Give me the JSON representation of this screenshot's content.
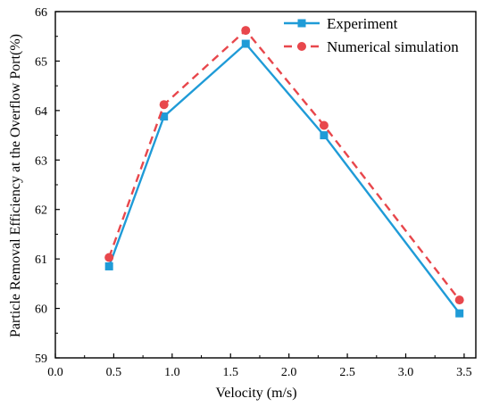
{
  "chart_data": {
    "type": "line",
    "xlabel": "Velocity (m/s)",
    "ylabel": "Particle Removal Efficiency at the Overflow Port(%)",
    "xlim": [
      0.0,
      3.6
    ],
    "ylim": [
      59,
      66
    ],
    "xticks": [
      "0.0",
      "0.5",
      "1.0",
      "1.5",
      "2.0",
      "2.5",
      "3.0",
      "3.5"
    ],
    "yticks": [
      "59",
      "60",
      "61",
      "62",
      "63",
      "64",
      "65",
      "66"
    ],
    "grid": false,
    "legend_position": "top-right",
    "series": [
      {
        "name": "Experiment",
        "color": "#1f9bd7",
        "line_style": "solid",
        "marker": "square",
        "x": [
          0.46,
          0.93,
          1.63,
          2.3,
          3.46
        ],
        "y": [
          60.85,
          63.88,
          65.35,
          63.5,
          59.9
        ]
      },
      {
        "name": "Numerical simulation",
        "color": "#e8474c",
        "line_style": "dashed",
        "marker": "circle",
        "x": [
          0.46,
          0.93,
          1.63,
          2.3,
          3.46
        ],
        "y": [
          61.03,
          64.12,
          65.62,
          63.7,
          60.17
        ]
      }
    ]
  }
}
